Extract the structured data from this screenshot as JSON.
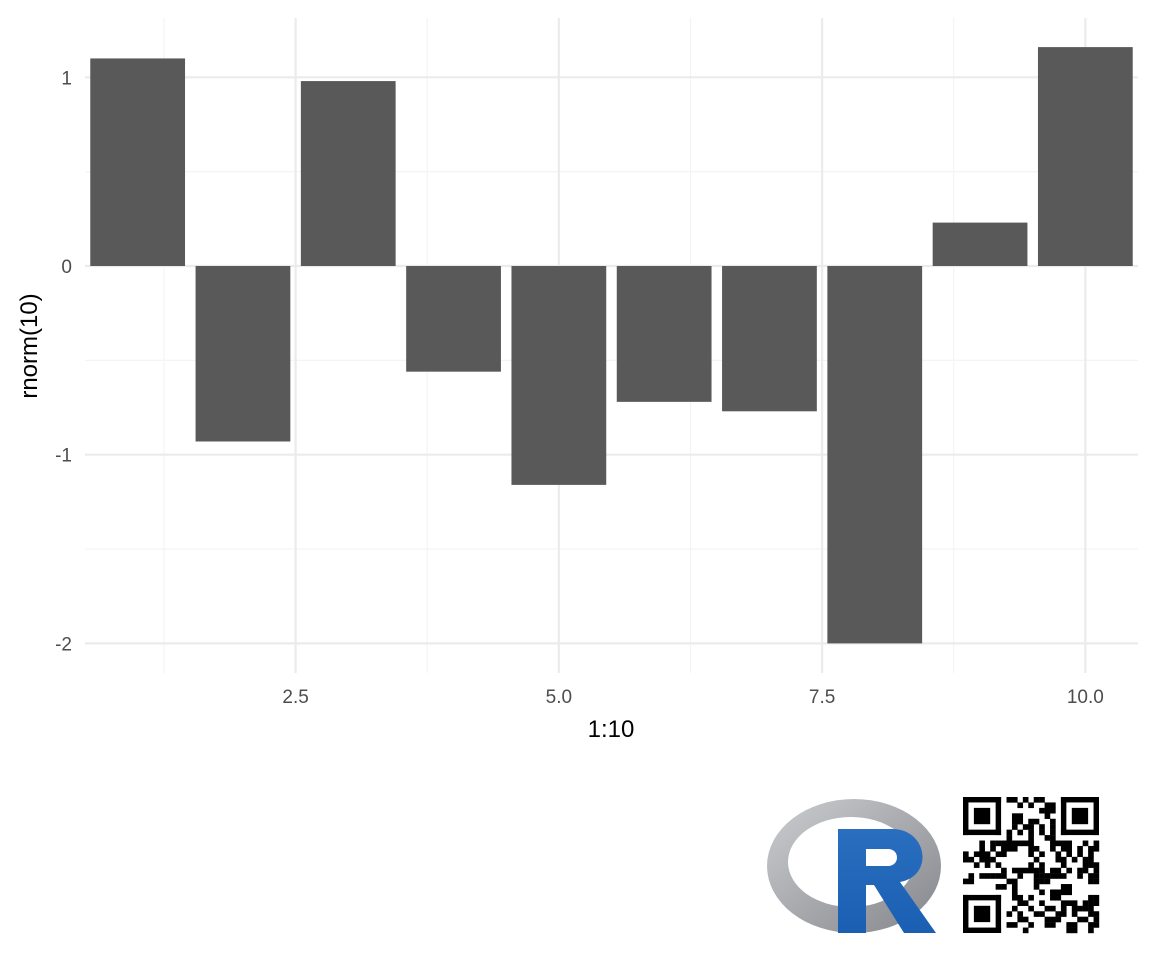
{
  "chart_data": {
    "type": "bar",
    "x": [
      1,
      2,
      3,
      4,
      5,
      6,
      7,
      8,
      9,
      10
    ],
    "values": [
      1.1,
      -0.93,
      0.98,
      -0.56,
      -1.16,
      -0.72,
      -0.77,
      -2.0,
      0.23,
      1.16
    ],
    "xlabel": "1:10",
    "ylabel": "rnorm(10)",
    "xlim": [
      0.5,
      10.5
    ],
    "ylim": [
      -2.0,
      1.16
    ],
    "x_ticks": [
      2.5,
      5.0,
      7.5,
      10.0
    ],
    "x_tick_labels": [
      "2.5",
      "5.0",
      "7.5",
      "10.0"
    ],
    "y_ticks": [
      -2,
      -1,
      0,
      1
    ],
    "y_tick_labels": [
      "-2",
      "-1",
      "0",
      "1"
    ],
    "grid": true,
    "legend": "none",
    "bar_color": "#595959"
  },
  "logos": {
    "r_logo": "R",
    "qr_icon": "qr-code-icon"
  }
}
